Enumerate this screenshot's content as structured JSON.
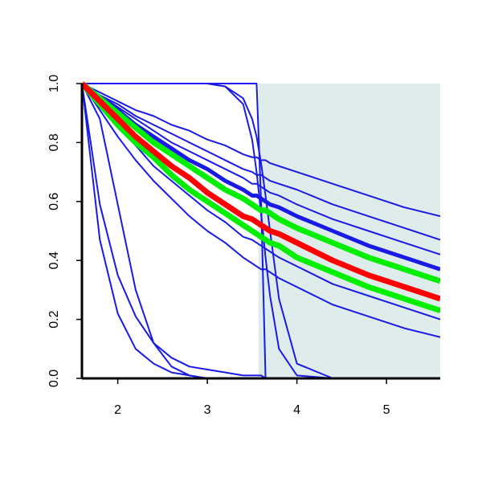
{
  "chart_data": {
    "type": "line",
    "x": [
      1.6,
      1.8,
      2.0,
      2.2,
      2.4,
      2.6,
      2.8,
      3.0,
      3.2,
      3.4,
      3.5,
      3.55,
      3.6,
      3.65,
      3.7,
      3.8,
      4.0,
      4.4,
      4.8,
      5.2,
      5.6
    ],
    "xlim": [
      1.6,
      5.6
    ],
    "ylim": [
      0,
      1
    ],
    "xticks": [
      2,
      3,
      4,
      5
    ],
    "yticks": [
      {
        "value": 0,
        "label": "0.0"
      },
      0.2,
      0.4,
      0.6,
      0.8,
      {
        "value": 1,
        "label": "1.0"
      }
    ],
    "shaded_region": {
      "x": [
        3.57,
        5.6
      ],
      "color": "#dfecec"
    },
    "series": [
      {
        "color": "#1a1ae6",
        "line_width": 2,
        "values": [
          1,
          0.97,
          0.94,
          0.91,
          0.89,
          0.86,
          0.84,
          0.81,
          0.79,
          0.76,
          0.75,
          0.75,
          0.74,
          0.74,
          0.73,
          0.72,
          0.7,
          0.66,
          0.62,
          0.58,
          0.55
        ]
      },
      {
        "color": "#1a1ae6",
        "line_width": 2,
        "values": [
          1,
          0.96,
          0.93,
          0.89,
          0.86,
          0.83,
          0.8,
          0.77,
          0.74,
          0.71,
          0.7,
          0.69,
          0.69,
          0.68,
          0.67,
          0.66,
          0.64,
          0.59,
          0.55,
          0.51,
          0.47
        ]
      },
      {
        "color": "#1a1ae6",
        "line_width": 2,
        "values": [
          1,
          0.96,
          0.92,
          0.88,
          0.84,
          0.8,
          0.77,
          0.74,
          0.71,
          0.68,
          0.66,
          0.66,
          0.65,
          0.64,
          0.63,
          0.62,
          0.59,
          0.54,
          0.5,
          0.46,
          0.42
        ]
      },
      {
        "color": "#1a1ae6",
        "line_width": 5,
        "values": [
          1,
          0.95,
          0.91,
          0.86,
          0.82,
          0.78,
          0.74,
          0.71,
          0.67,
          0.64,
          0.62,
          0.62,
          0.61,
          0.6,
          0.59,
          0.58,
          0.55,
          0.5,
          0.45,
          0.41,
          0.37
        ]
      },
      {
        "color": "#1a1ae6",
        "line_width": 5,
        "values": [
          1,
          0.93,
          0.86,
          0.8,
          0.75,
          0.69,
          0.64,
          0.6,
          0.56,
          0.52,
          0.5,
          0.49,
          0.48,
          0.47,
          0.46,
          0.45,
          0.41,
          0.36,
          0.31,
          0.27,
          0.23
        ]
      },
      {
        "color": "#1a1ae6",
        "line_width": 2,
        "values": [
          1,
          0.92,
          0.85,
          0.79,
          0.72,
          0.67,
          0.62,
          0.57,
          0.53,
          0.48,
          0.47,
          0.46,
          0.45,
          0.44,
          0.43,
          0.41,
          0.38,
          0.32,
          0.28,
          0.24,
          0.2
        ]
      },
      {
        "color": "#1a1ae6",
        "line_width": 2,
        "values": [
          1,
          0.91,
          0.82,
          0.74,
          0.67,
          0.61,
          0.55,
          0.5,
          0.46,
          0.41,
          0.39,
          0.38,
          0.37,
          0.37,
          0.36,
          0.34,
          0.31,
          0.25,
          0.21,
          0.17,
          0.14
        ]
      },
      {
        "color": "#1a1ae6",
        "line_width": 2,
        "values": [
          1,
          0.47,
          0.22,
          0.1,
          0.05,
          0.02,
          0.01,
          0,
          0,
          0,
          0,
          0,
          0,
          0,
          0,
          0,
          0,
          0,
          0,
          0,
          0
        ]
      },
      {
        "color": "#1a1ae6",
        "line_width": 2,
        "values": [
          1,
          0.59,
          0.35,
          0.21,
          0.12,
          0.07,
          0.04,
          0.03,
          0.02,
          0.01,
          0.01,
          0.01,
          0.01,
          0,
          0,
          0,
          0,
          0,
          0,
          0,
          0
        ]
      },
      {
        "color": "#1a1ae6",
        "line_width": 2,
        "values": [
          1,
          0.88,
          0.59,
          0.3,
          0.12,
          0.04,
          0.01,
          0,
          0,
          0,
          0,
          0,
          0,
          0,
          0,
          0,
          0,
          0,
          0,
          0,
          0
        ]
      },
      {
        "color": "#1a1ae6",
        "line_width": 2,
        "values": [
          1,
          1,
          1,
          1,
          1,
          1,
          1,
          1,
          1,
          1,
          1,
          1,
          0.6,
          0,
          0,
          0,
          0,
          0,
          0,
          0,
          0
        ]
      },
      {
        "color": "#1a1ae6",
        "line_width": 2,
        "values": [
          1,
          1,
          1,
          1,
          1,
          1,
          1,
          1,
          0.99,
          0.93,
          0.81,
          0.7,
          0.56,
          0.41,
          0.28,
          0.1,
          0.01,
          0,
          0,
          0,
          0
        ]
      },
      {
        "color": "#1a1ae6",
        "line_width": 2,
        "values": [
          1,
          1,
          1,
          1,
          1,
          1,
          1,
          1,
          0.99,
          0.95,
          0.88,
          0.82,
          0.73,
          0.62,
          0.5,
          0.27,
          0.05,
          0,
          0,
          0,
          0
        ]
      },
      {
        "color": "#00ee00",
        "line_width": 7,
        "values": [
          1,
          0.95,
          0.9,
          0.85,
          0.8,
          0.76,
          0.72,
          0.68,
          0.64,
          0.61,
          0.59,
          0.58,
          0.57,
          0.57,
          0.56,
          0.54,
          0.51,
          0.46,
          0.41,
          0.37,
          0.33
        ]
      },
      {
        "color": "#00ee00",
        "line_width": 7,
        "values": [
          1,
          0.93,
          0.86,
          0.8,
          0.75,
          0.69,
          0.64,
          0.6,
          0.56,
          0.52,
          0.5,
          0.49,
          0.48,
          0.47,
          0.46,
          0.45,
          0.41,
          0.36,
          0.31,
          0.27,
          0.23
        ]
      },
      {
        "color": "#ff0000",
        "line_width": 7,
        "values": [
          1,
          0.94,
          0.88,
          0.82,
          0.77,
          0.72,
          0.68,
          0.63,
          0.59,
          0.55,
          0.54,
          0.53,
          0.52,
          0.51,
          0.5,
          0.49,
          0.46,
          0.4,
          0.35,
          0.31,
          0.27
        ]
      }
    ]
  }
}
